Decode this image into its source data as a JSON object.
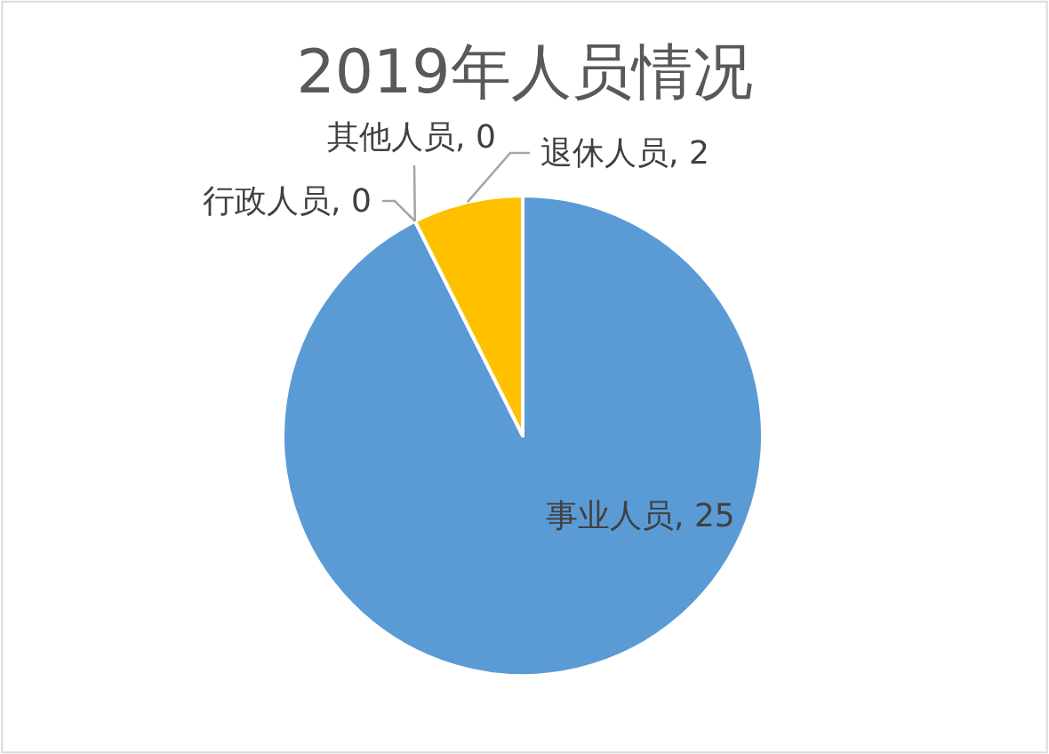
{
  "chart_data": {
    "type": "pie",
    "title": "2019年人员情况",
    "categories": [
      "事业人员",
      "行政人员",
      "其他人员",
      "退休人员"
    ],
    "values": [
      25,
      0,
      0,
      2
    ],
    "value_labels": [
      ", 25",
      ", 0",
      ", 0",
      ", 2"
    ],
    "colors": [
      "#5b9bd5",
      null,
      null,
      "#ffc000"
    ]
  }
}
